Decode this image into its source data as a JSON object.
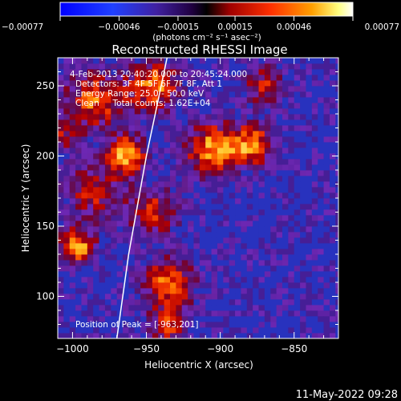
{
  "chart_data": {
    "type": "heatmap",
    "title": "Reconstructed RHESSI Image",
    "xlabel": "Heliocentric X (arcsec)",
    "ylabel": "Heliocentric Y (arcsec)",
    "xlim": [
      -1010,
      -820
    ],
    "ylim": [
      70,
      270
    ],
    "x_ticks": [
      -1000,
      -950,
      -900,
      -850
    ],
    "y_ticks": [
      100,
      150,
      200,
      250
    ],
    "x_tick_labels": [
      "−1000",
      "−950",
      "−900",
      "−850"
    ],
    "y_tick_labels": [
      "100",
      "150",
      "200",
      "250"
    ],
    "colorbar": {
      "ticks": [
        -0.00077,
        -0.00046,
        -0.00015,
        0.00015,
        0.00046,
        0.00077
      ],
      "tick_labels": [
        "−0.00077",
        "−0.00046",
        "−0.00015",
        "0.00015",
        "0.00046",
        "0.00077"
      ],
      "range": [
        -0.00077,
        0.00077
      ],
      "unit_label": "(photons cm⁻² s⁻¹ asec⁻²)"
    },
    "annotations": [
      "4-Feb-2013 20:40:20.000 to 20:45:24.000",
      "Detectors: 3F 4F 5F 6F 7F 8F, Att 1",
      "Energy Range: 25.0 - 50.0 keV",
      "Clean     Total counts: 1.62E+04"
    ],
    "peak_label": "Position of Peak = [-963,201]",
    "peak": [
      -963,
      201
    ],
    "grid": false,
    "limb_curve": [
      [
        -970,
        70
      ],
      [
        -962,
        130
      ],
      [
        -950,
        200
      ],
      [
        -936,
        270
      ]
    ],
    "intensity_sources": [
      {
        "x": -963,
        "y": 201,
        "sigma": 9,
        "amp": 1.0
      },
      {
        "x": -985,
        "y": 240,
        "sigma": 14,
        "amp": 0.75
      },
      {
        "x": -945,
        "y": 250,
        "sigma": 12,
        "amp": 0.85
      },
      {
        "x": -905,
        "y": 205,
        "sigma": 13,
        "amp": 0.9
      },
      {
        "x": -878,
        "y": 208,
        "sigma": 10,
        "amp": 0.8
      },
      {
        "x": -870,
        "y": 250,
        "sigma": 10,
        "amp": 0.55
      },
      {
        "x": -997,
        "y": 135,
        "sigma": 9,
        "amp": 0.9
      },
      {
        "x": -985,
        "y": 175,
        "sigma": 14,
        "amp": 0.55
      },
      {
        "x": -945,
        "y": 160,
        "sigma": 12,
        "amp": 0.6
      },
      {
        "x": -935,
        "y": 110,
        "sigma": 12,
        "amp": 0.8
      },
      {
        "x": -935,
        "y": 80,
        "sigma": 10,
        "amp": 0.6
      },
      {
        "x": -1005,
        "y": 215,
        "sigma": 8,
        "amp": 0.45
      }
    ]
  },
  "footer": {
    "timestamp": "11-May-2022 09:28"
  }
}
